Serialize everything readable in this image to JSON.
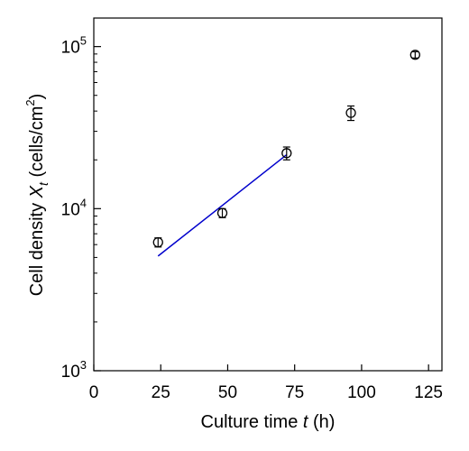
{
  "chart_data": {
    "type": "scatter",
    "title": "",
    "xlabel": {
      "prefix": "Culture time ",
      "var": "t",
      "suffix": " (h)"
    },
    "ylabel": {
      "prefix": "Cell density  ",
      "var": "X",
      "sub": "t",
      "suffix": " (cells/cm",
      "sup": "2",
      "close": ")"
    },
    "xlim": [
      0,
      130
    ],
    "ylim": [
      1000,
      150000
    ],
    "yscale": "log",
    "x_ticks": [
      0,
      25,
      50,
      75,
      100,
      125
    ],
    "x_tick_labels": [
      "0",
      "25",
      "50",
      "75",
      "100",
      "125"
    ],
    "y_ticks": [
      {
        "value": 1000,
        "base": "10",
        "exp": "3"
      },
      {
        "value": 10000,
        "base": "10",
        "exp": "4"
      },
      {
        "value": 100000,
        "base": "10",
        "exp": "5"
      }
    ],
    "grid": false,
    "legend": "none",
    "series": [
      {
        "marker": "open-circle",
        "color": "#000000",
        "points": [
          {
            "x": 24,
            "y": 6200,
            "err": 400
          },
          {
            "x": 48,
            "y": 9400,
            "err": 600
          },
          {
            "x": 72,
            "y": 22000,
            "err": 2000
          },
          {
            "x": 96,
            "y": 39000,
            "err": 4000
          },
          {
            "x": 120,
            "y": 89000,
            "err": 4000
          }
        ]
      }
    ],
    "fit_line": {
      "color": "#0000cc",
      "x": [
        24,
        72
      ],
      "y": [
        5100,
        21500
      ]
    }
  }
}
